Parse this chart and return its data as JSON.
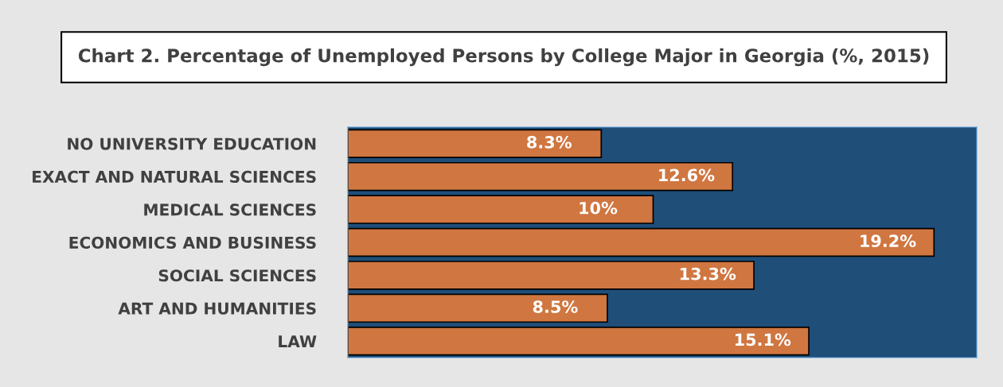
{
  "chart_data": {
    "type": "bar",
    "orientation": "horizontal",
    "title": "Chart 2. Percentage of Unemployed Persons by College Major in Georgia (%, 2015)",
    "categories": [
      "NO UNIVERSITY EDUCATION",
      "EXACT AND NATURAL SCIENCES",
      "MEDICAL SCIENCES",
      "ECONOMICS AND BUSINESS",
      "SOCIAL SCIENCES",
      "ART AND HUMANITIES",
      "LAW"
    ],
    "values": [
      8.3,
      12.6,
      10,
      19.2,
      13.3,
      8.5,
      15.1
    ],
    "value_labels": [
      "8.3%",
      "12.6%",
      "10%",
      "19.2%",
      "13.3%",
      "8.5%",
      "15.1%"
    ],
    "color": "#d07640",
    "xlim": [
      0,
      20.6
    ],
    "tick_labels": "y",
    "bands": [
      {
        "axis": "x",
        "from": 0,
        "to": 20.6,
        "color": "#1f4e79"
      }
    ],
    "grid": false,
    "legend": false
  }
}
